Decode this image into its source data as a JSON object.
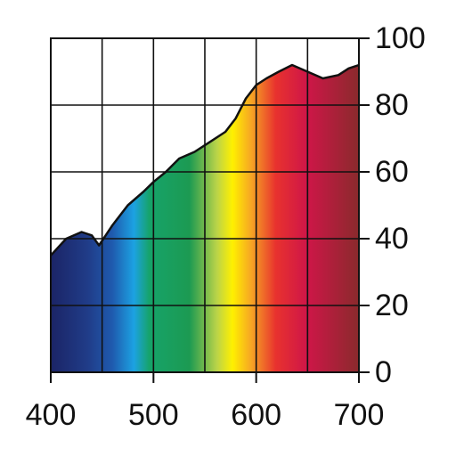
{
  "chart_data": {
    "type": "area",
    "x": [
      400,
      415,
      430,
      440,
      447,
      460,
      475,
      490,
      500,
      512,
      525,
      540,
      555,
      570,
      580,
      590,
      600,
      610,
      622,
      635,
      650,
      665,
      680,
      690,
      700
    ],
    "values": [
      35,
      40,
      42,
      41,
      38,
      44,
      50,
      54,
      57,
      60,
      64,
      66,
      69,
      72,
      76,
      82,
      86,
      88,
      90,
      92,
      90,
      88,
      89,
      91,
      92
    ],
    "xlim": [
      400,
      700
    ],
    "ylim": [
      0,
      100
    ],
    "xticks": [
      400,
      500,
      600,
      700
    ],
    "yticks": [
      0,
      20,
      40,
      60,
      80,
      100
    ],
    "xgrid": [
      400,
      450,
      500,
      550,
      600,
      650,
      700
    ],
    "grid": true,
    "y_axis_side": "right",
    "line_color": "#111111"
  }
}
